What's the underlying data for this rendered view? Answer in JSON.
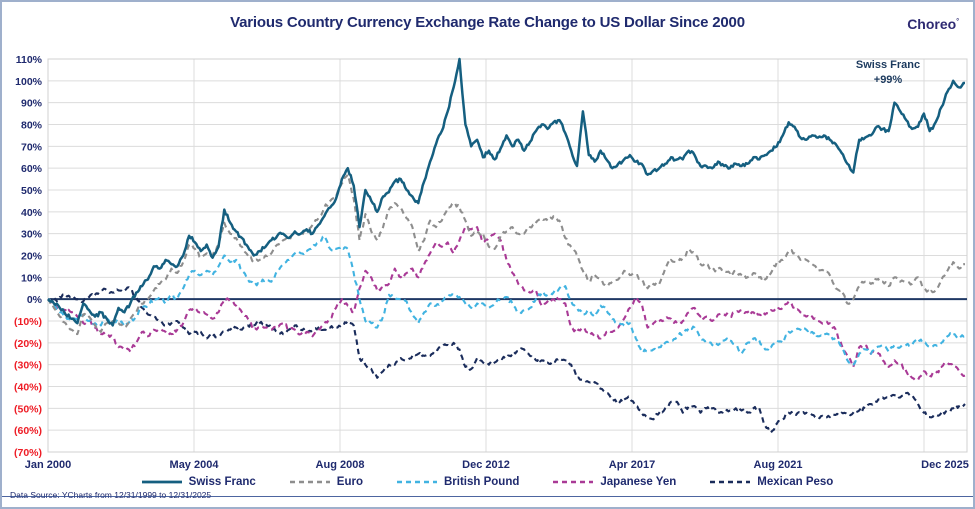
{
  "header": {
    "brand": "Choreo",
    "brand_mark": "°"
  },
  "annotation": {
    "line1": "Swiss Franc",
    "line2": "+99%"
  },
  "footer": {
    "source": "Data Source: YCharts from 12/31/1999 to 12/31/2025"
  },
  "colors": {
    "title_text": "#1f2a6e",
    "axis_positive": "#1f2a6e",
    "axis_negative": "#ee1c25",
    "gridline": "#dcdcdc",
    "plot_border": "#d0d0d0",
    "zero_line": "#1f3864",
    "annotation_text": "#1c3a5e",
    "outer_border": "#9fb0cc"
  },
  "chart_data": {
    "type": "line",
    "title": "Various Country Currency Exchange Rate Change to US Dollar Since 2000",
    "xlabel": "",
    "ylabel": "",
    "ylim": [
      -70,
      110
    ],
    "grid": true,
    "legend_position": "bottom",
    "x_start": "Jan 2000",
    "x_end": "Dec 2025",
    "x_tick_labels": [
      "Jan 2000",
      "May 2004",
      "Aug 2008",
      "Dec 2012",
      "Apr 2017",
      "Aug 2021",
      "Dec 2025"
    ],
    "y_tick_values": [
      110,
      100,
      90,
      80,
      70,
      60,
      50,
      40,
      30,
      20,
      10,
      0,
      -10,
      -20,
      -30,
      -40,
      -50,
      -60,
      -70
    ],
    "y_tick_labels": [
      "110%",
      "100%",
      "90%",
      "80%",
      "70%",
      "60%",
      "50%",
      "40%",
      "30%",
      "20%",
      "10%",
      "0%",
      "(10%)",
      "(20%)",
      "(30%)",
      "(40%)",
      "(50%)",
      "(60%)",
      "(70%)"
    ],
    "points_per_year": 6,
    "jitter_pct": 1.0,
    "series": [
      {
        "name": "Swiss Franc",
        "color": "#155f80",
        "style": "solid",
        "end_label": "+99%",
        "values": [
          0,
          -2,
          -4,
          -7,
          -9,
          -11,
          -2,
          -5,
          -8,
          -6,
          -9,
          -12,
          -4,
          -6,
          -2,
          3,
          6,
          9,
          15,
          14,
          18,
          16,
          15,
          20,
          29,
          26,
          22,
          25,
          19,
          24,
          41,
          35,
          31,
          28,
          24,
          20,
          22,
          24,
          27,
          29,
          30,
          28,
          31,
          30,
          32,
          30,
          34,
          38,
          42,
          46,
          55,
          60,
          52,
          33,
          50,
          45,
          40,
          47,
          49,
          54,
          55,
          50,
          47,
          44,
          54,
          63,
          71,
          77,
          86,
          97,
          110,
          80,
          70,
          73,
          65,
          68,
          64,
          69,
          75,
          70,
          73,
          68,
          72,
          77,
          80,
          78,
          81,
          82,
          76,
          68,
          61,
          86,
          66,
          63,
          68,
          64,
          60,
          62,
          64,
          66,
          63,
          62,
          57,
          59,
          60,
          62,
          65,
          64,
          64,
          68,
          66,
          61,
          61,
          60,
          63,
          61,
          60,
          62,
          61,
          62,
          65,
          64,
          66,
          68,
          70,
          75,
          81,
          79,
          74,
          73,
          75,
          74,
          75,
          73,
          71,
          67,
          62,
          58,
          73,
          74,
          75,
          79,
          78,
          77,
          90,
          86,
          82,
          78,
          79,
          85,
          77,
          81,
          88,
          95,
          100,
          97,
          99
        ]
      },
      {
        "name": "Euro",
        "color": "#8e8e8e",
        "style": "dashed",
        "values": [
          0,
          -4,
          -8,
          -11,
          -14,
          -16,
          -7,
          -8,
          -12,
          -15,
          -11,
          -10,
          -11,
          -13,
          -9,
          -6,
          -2,
          0,
          4,
          7,
          9,
          14,
          12,
          17,
          25,
          23,
          19,
          21,
          20,
          25,
          35,
          30,
          28,
          24,
          20,
          17,
          18,
          20,
          21,
          25,
          27,
          27,
          31,
          29,
          32,
          34,
          37,
          42,
          45,
          47,
          53,
          57,
          46,
          27,
          39,
          31,
          27,
          33,
          41,
          44,
          42,
          37,
          33,
          22,
          27,
          36,
          33,
          36,
          42,
          44,
          42,
          36,
          29,
          31,
          30,
          24,
          23,
          29,
          31,
          33,
          30,
          30,
          33,
          35,
          37,
          36,
          38,
          36,
          28,
          24,
          20,
          13,
          8,
          11,
          9,
          6,
          8,
          9,
          13,
          11,
          11,
          9,
          5,
          7,
          7,
          14,
          18,
          17,
          19,
          23,
          21,
          16,
          16,
          13,
          14,
          13,
          12,
          13,
          11,
          10,
          12,
          10,
          9,
          12,
          17,
          18,
          22,
          21,
          18,
          18,
          16,
          13,
          13,
          11,
          5,
          4,
          -2,
          0,
          6,
          8,
          7,
          9,
          8,
          6,
          10,
          8,
          8,
          7,
          10,
          5,
          3,
          4,
          9,
          13,
          17,
          14,
          16
        ]
      },
      {
        "name": "British Pound",
        "color": "#41b3e1",
        "style": "dashed",
        "values": [
          0,
          -2,
          -6,
          -8,
          -10,
          -9,
          -7,
          -10,
          -11,
          -12,
          -9,
          -10,
          -10,
          -12,
          -10,
          -8,
          -4,
          -3,
          0,
          1,
          -2,
          2,
          0,
          5,
          11,
          13,
          11,
          13,
          11,
          15,
          20,
          17,
          18,
          13,
          9,
          7,
          7,
          9,
          8,
          13,
          16,
          18,
          21,
          21,
          22,
          24,
          26,
          29,
          23,
          23,
          24,
          23,
          12,
          0,
          -10,
          -11,
          -13,
          -8,
          2,
          1,
          0,
          -1,
          -7,
          -11,
          -6,
          -2,
          -3,
          -1,
          1,
          2,
          1,
          -2,
          -4,
          -2,
          -2,
          -4,
          -2,
          0,
          1,
          -2,
          -6,
          -5,
          -4,
          0,
          3,
          2,
          3,
          5,
          6,
          -1,
          -4,
          -7,
          -5,
          -8,
          -3,
          -5,
          -9,
          -11,
          -12,
          -11,
          -18,
          -24,
          -24,
          -23,
          -22,
          -20,
          -19,
          -17,
          -16,
          -13,
          -13,
          -18,
          -19,
          -21,
          -21,
          -19,
          -19,
          -21,
          -25,
          -20,
          -18,
          -19,
          -23,
          -22,
          -19,
          -20,
          -15,
          -14,
          -14,
          -14,
          -15,
          -17,
          -16,
          -16,
          -19,
          -22,
          -28,
          -30,
          -25,
          -23,
          -25,
          -22,
          -21,
          -24,
          -21,
          -22,
          -21,
          -21,
          -18,
          -20,
          -22,
          -21,
          -20,
          -17,
          -16,
          -18,
          -17
        ]
      },
      {
        "name": "Japanese Yen",
        "color": "#a93a96",
        "style": "dashed",
        "values": [
          0,
          -3,
          -4,
          -5,
          -6,
          -8,
          -11,
          -10,
          -13,
          -16,
          -16,
          -17,
          -22,
          -23,
          -24,
          -20,
          -15,
          -17,
          -14,
          -14,
          -15,
          -16,
          -14,
          -11,
          -5,
          -4,
          -6,
          -7,
          -9,
          -6,
          0,
          -1,
          -3,
          -6,
          -9,
          -14,
          -13,
          -13,
          -14,
          -12,
          -11,
          -14,
          -14,
          -16,
          -15,
          -17,
          -14,
          -11,
          -9,
          -4,
          0,
          -3,
          -6,
          5,
          13,
          10,
          4,
          5,
          7,
          14,
          10,
          12,
          14,
          10,
          16,
          21,
          26,
          24,
          26,
          21,
          27,
          33,
          32,
          33,
          26,
          28,
          30,
          27,
          18,
          12,
          7,
          4,
          3,
          4,
          -3,
          -1,
          0,
          0,
          -2,
          -13,
          -15,
          -13,
          -15,
          -17,
          -18,
          -15,
          -15,
          -13,
          -9,
          -4,
          1,
          -2,
          -13,
          -11,
          -10,
          -9,
          -9,
          -11,
          -10,
          -6,
          -4,
          -8,
          -8,
          -10,
          -7,
          -7,
          -8,
          -6,
          -5,
          -6,
          -6,
          -7,
          -7,
          -5,
          -5,
          -4,
          -1,
          -4,
          -6,
          -8,
          -8,
          -10,
          -11,
          -11,
          -14,
          -21,
          -26,
          -31,
          -22,
          -21,
          -25,
          -24,
          -28,
          -31,
          -28,
          -29,
          -33,
          -36,
          -37,
          -33,
          -35,
          -34,
          -31,
          -29,
          -31,
          -33,
          -35
        ]
      },
      {
        "name": "Mexican Peso",
        "color": "#1a2c5b",
        "style": "dashed",
        "values": [
          0,
          -1,
          1,
          2,
          1,
          0,
          -1,
          1,
          2,
          4,
          4,
          3,
          4,
          4,
          5,
          1,
          -4,
          -7,
          -8,
          -10,
          -12,
          -11,
          -10,
          -13,
          -16,
          -15,
          -15,
          -18,
          -17,
          -17,
          -15,
          -14,
          -13,
          -14,
          -12,
          -12,
          -11,
          -11,
          -13,
          -15,
          -16,
          -14,
          -12,
          -14,
          -15,
          -14,
          -13,
          -14,
          -13,
          -13,
          -12,
          -10,
          -12,
          -27,
          -30,
          -32,
          -36,
          -33,
          -30,
          -30,
          -27,
          -28,
          -26,
          -25,
          -26,
          -26,
          -23,
          -22,
          -21,
          -20,
          -23,
          -31,
          -32,
          -27,
          -29,
          -30,
          -29,
          -27,
          -27,
          -25,
          -24,
          -23,
          -26,
          -28,
          -28,
          -29,
          -29,
          -27,
          -28,
          -30,
          -36,
          -37,
          -38,
          -38,
          -41,
          -43,
          -45,
          -48,
          -46,
          -45,
          -49,
          -52,
          -54,
          -55,
          -52,
          -50,
          -47,
          -47,
          -52,
          -49,
          -49,
          -52,
          -50,
          -50,
          -52,
          -51,
          -51,
          -50,
          -51,
          -52,
          -50,
          -50,
          -58,
          -61,
          -57,
          -55,
          -52,
          -53,
          -52,
          -52,
          -53,
          -54,
          -54,
          -54,
          -53,
          -52,
          -53,
          -52,
          -51,
          -50,
          -48,
          -47,
          -45,
          -45,
          -44,
          -45,
          -43,
          -44,
          -48,
          -52,
          -54,
          -53,
          -52,
          -51,
          -50,
          -49,
          -48
        ]
      }
    ]
  }
}
